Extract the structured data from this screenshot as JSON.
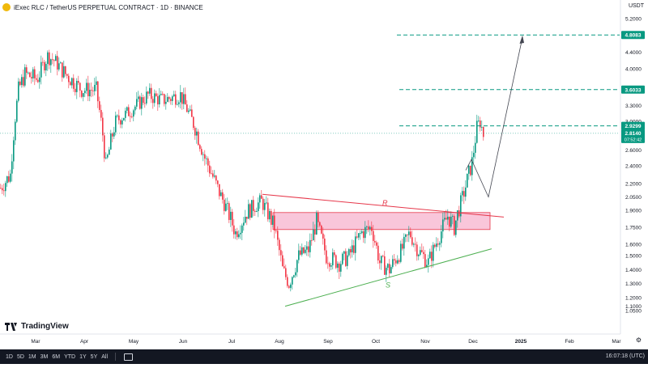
{
  "header": {
    "title": "iExec RLC / TetherUS PERPETUAL CONTRACT · 1D · BINANCE"
  },
  "price_scale": {
    "currency": "USDT"
  },
  "brand": "TradingView",
  "footer": {
    "ranges": [
      "1D",
      "5D",
      "1M",
      "3M",
      "6M",
      "YTD",
      "1Y",
      "5Y",
      "All"
    ],
    "clock": "16:07:18 (UTC)"
  },
  "colors": {
    "up": "#089981",
    "down": "#f23645",
    "resistance": "#e6374a",
    "support": "#4caf50",
    "zone_fill": "#f7b3ce",
    "target": "#089981"
  },
  "chart_data": {
    "type": "candlestick",
    "ylim": [
      1.05,
      5.2
    ],
    "y_ticks": [
      "1.0500",
      "1.1000",
      "1.2000",
      "1.3000",
      "1.4000",
      "1.5000",
      "1.6000",
      "1.7500",
      "1.9000",
      "2.0500",
      "2.2000",
      "2.4000",
      "2.6000",
      "2.8000",
      "3.0000",
      "3.3000",
      "3.6000",
      "4.0000",
      "4.4000",
      "4.8000",
      "5.2000"
    ],
    "x_ticks": [
      "Mar",
      "Apr",
      "May",
      "Jun",
      "Jul",
      "Aug",
      "Sep",
      "Oct",
      "Nov",
      "Dec",
      "2025",
      "Feb",
      "Mar"
    ],
    "last_price": "2.8140",
    "countdown": "07:52:42",
    "targets": [
      {
        "label": "2.9299",
        "value": 2.9299
      },
      {
        "label": "3.6033",
        "value": 3.6033
      },
      {
        "label": "4.8083",
        "value": 4.8083
      }
    ],
    "annotations": {
      "resistance_label": "R",
      "support_label": "S"
    }
  }
}
